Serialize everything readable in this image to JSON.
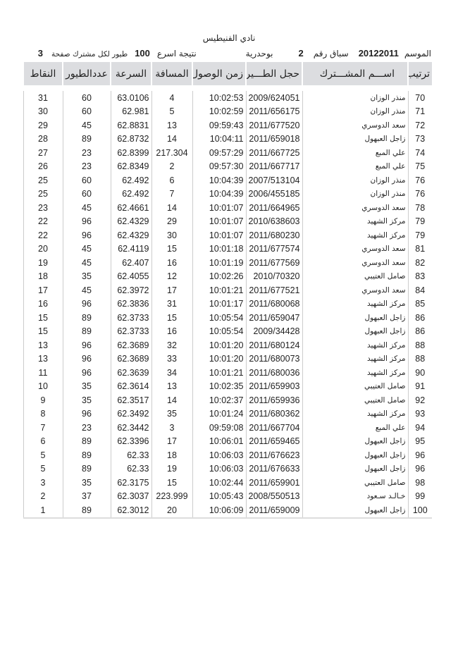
{
  "title": "نادي الفنيطيس",
  "meta": {
    "season_label": "الموسم",
    "season_value": "20122011",
    "race_label": "سباق رقم",
    "race_value": "2",
    "location": "بوحدرية",
    "fastest_label": "نتيجة اسرع",
    "fastest_value": "100",
    "per_member_label": "طيور لكل مشترك صفحة",
    "page_value": "3"
  },
  "table": {
    "headers": [
      "ترتيب",
      "اســـم المشـــترك",
      "حجل الطـــير",
      "زمن الوصول",
      "المسافة",
      "السرعة",
      "عددالطيور",
      "النقاط"
    ],
    "rows": [
      [
        "70",
        "منذر الوزان",
        "2009/624051",
        "10:02:53",
        "4",
        "63.0106",
        "60",
        "31"
      ],
      [
        "71",
        "منذر الوزان",
        "2011/656175",
        "10:02:59",
        "5",
        "62.981",
        "60",
        "30"
      ],
      [
        "72",
        "سعد الدوسري",
        "2011/677520",
        "09:59:43",
        "13",
        "62.8831",
        "45",
        "29"
      ],
      [
        "73",
        "زاجل العبهول",
        "2011/659018",
        "10:04:11",
        "14",
        "62.8732",
        "89",
        "28"
      ],
      [
        "74",
        "علي المبع",
        "2011/667725",
        "09:57:29",
        "217.304",
        "62.8399",
        "23",
        "27"
      ],
      [
        "75",
        "علي المبع",
        "2011/667717",
        "09:57:30",
        "2",
        "62.8349",
        "23",
        "26"
      ],
      [
        "76",
        "منذر الوزان",
        "2007/513104",
        "10:04:39",
        "6",
        "62.492",
        "60",
        "25"
      ],
      [
        "76",
        "منذر الوزان",
        "2006/455185",
        "10:04:39",
        "7",
        "62.492",
        "60",
        "25"
      ],
      [
        "78",
        "سعد الدوسري",
        "2011/664965",
        "10:01:07",
        "14",
        "62.4661",
        "45",
        "23"
      ],
      [
        "79",
        "مركز الشهيد",
        "2010/638603",
        "10:01:07",
        "29",
        "62.4329",
        "96",
        "22"
      ],
      [
        "79",
        "مركز الشهيد",
        "2011/680230",
        "10:01:07",
        "30",
        "62.4329",
        "96",
        "22"
      ],
      [
        "81",
        "سعد الدوسري",
        "2011/677574",
        "10:01:18",
        "15",
        "62.4119",
        "45",
        "20"
      ],
      [
        "82",
        "سعد الدوسري",
        "2011/677569",
        "10:01:19",
        "16",
        "62.407",
        "45",
        "19"
      ],
      [
        "83",
        "صامل العتيبي",
        "2010/70320",
        "10:02:26",
        "12",
        "62.4055",
        "35",
        "18"
      ],
      [
        "84",
        "سعد الدوسري",
        "2011/677521",
        "10:01:21",
        "17",
        "62.3972",
        "45",
        "17"
      ],
      [
        "85",
        "مركز الشهيد",
        "2011/680068",
        "10:01:17",
        "31",
        "62.3836",
        "96",
        "16"
      ],
      [
        "86",
        "زاجل العبهول",
        "2011/659047",
        "10:05:54",
        "15",
        "62.3733",
        "89",
        "15"
      ],
      [
        "86",
        "زاجل العبهول",
        "2009/34428",
        "10:05:54",
        "16",
        "62.3733",
        "89",
        "15"
      ],
      [
        "88",
        "مركز الشهيد",
        "2011/680124",
        "10:01:20",
        "32",
        "62.3689",
        "96",
        "13"
      ],
      [
        "88",
        "مركز الشهيد",
        "2011/680073",
        "10:01:20",
        "33",
        "62.3689",
        "96",
        "13"
      ],
      [
        "90",
        "مركز الشهيد",
        "2011/680036",
        "10:01:21",
        "34",
        "62.3639",
        "96",
        "11"
      ],
      [
        "91",
        "صامل العتيبي",
        "2011/659903",
        "10:02:35",
        "13",
        "62.3614",
        "35",
        "10"
      ],
      [
        "92",
        "صامل العتيبي",
        "2011/659936",
        "10:02:37",
        "14",
        "62.3517",
        "35",
        "9"
      ],
      [
        "93",
        "مركز الشهيد",
        "2011/680362",
        "10:01:24",
        "35",
        "62.3492",
        "96",
        "8"
      ],
      [
        "94",
        "علي المبع",
        "2011/667704",
        "09:59:08",
        "3",
        "62.3442",
        "23",
        "7"
      ],
      [
        "95",
        "زاجل العبهول",
        "2011/659465",
        "10:06:01",
        "17",
        "62.3396",
        "89",
        "6"
      ],
      [
        "96",
        "زاجل العبهول",
        "2011/676623",
        "10:06:03",
        "18",
        "62.33",
        "89",
        "5"
      ],
      [
        "96",
        "زاجل العبهول",
        "2011/676633",
        "10:06:03",
        "19",
        "62.33",
        "89",
        "5"
      ],
      [
        "98",
        "صامل العتيبي",
        "2011/659901",
        "10:02:44",
        "15",
        "62.3175",
        "35",
        "3"
      ],
      [
        "99",
        "خـالـد سـعود",
        "2008/550513",
        "10:05:43",
        "223.999",
        "62.3037",
        "37",
        "2"
      ],
      [
        "100",
        "زاجل العبهول",
        "2011/659009",
        "10:06:09",
        "20",
        "62.3012",
        "89",
        "1"
      ]
    ]
  }
}
